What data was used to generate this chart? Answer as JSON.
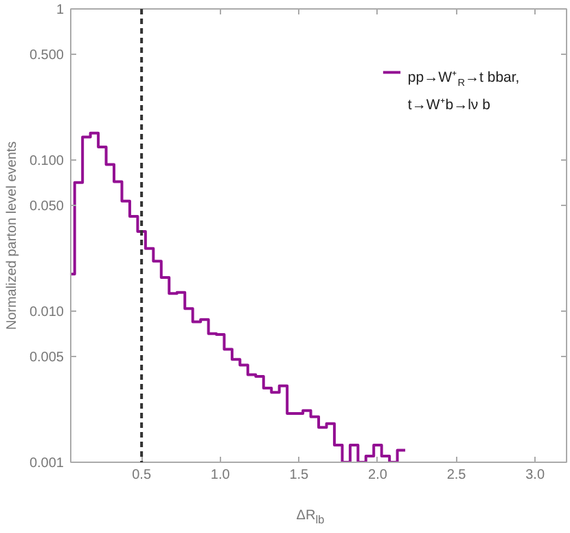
{
  "chart_data": {
    "type": "histogram",
    "xlabel": "ΔR$_{lb}$",
    "ylabel": "Normalized parton level events",
    "bins": [
      0.05,
      0.075,
      0.125,
      0.175,
      0.225,
      0.275,
      0.325,
      0.375,
      0.425,
      0.475,
      0.525,
      0.575,
      0.625,
      0.675,
      0.725,
      0.775,
      0.825,
      0.875,
      0.925,
      0.975,
      1.025,
      1.075,
      1.125,
      1.175,
      1.225,
      1.275,
      1.325,
      1.375,
      1.425,
      1.475,
      1.525,
      1.575,
      1.625,
      1.675,
      1.725,
      1.775,
      1.825,
      1.875,
      1.925,
      1.975,
      2.025,
      2.075,
      2.125,
      2.175
    ],
    "series": [
      {
        "name": "pp→W⁺$_{R}$→t bbar,\nt→W⁺b→lν b",
        "color": "#930f93",
        "values": [
          0.0176,
          0.071,
          0.142,
          0.151,
          0.122,
          0.0935,
          0.072,
          0.0535,
          0.0424,
          0.0337,
          0.026,
          0.0214,
          0.0167,
          0.0131,
          0.0133,
          0.0104,
          0.0085,
          0.0088,
          0.0071,
          0.007,
          0.0056,
          0.0048,
          0.0044,
          0.0038,
          0.0037,
          0.0031,
          0.0029,
          0.0032,
          0.0021,
          0.0021,
          0.0022,
          0.002,
          0.0017,
          0.0018,
          0.0013,
          null,
          0.0013,
          null,
          0.0011,
          0.0013,
          0.0011,
          null,
          0.0012
        ]
      }
    ],
    "xlim": [
      0.05,
      3.2
    ],
    "ylim": [
      0.001,
      1
    ],
    "xticks": [
      {
        "value": 0.5,
        "label": "0.5"
      },
      {
        "value": 1.0,
        "label": "1.0"
      },
      {
        "value": 1.5,
        "label": "1.5"
      },
      {
        "value": 2.0,
        "label": "2.0"
      },
      {
        "value": 2.5,
        "label": "2.5"
      },
      {
        "value": 3.0,
        "label": "3.0"
      }
    ],
    "yticks": [
      {
        "value": 0.001,
        "label": "0.001"
      },
      {
        "value": 0.005,
        "label": "0.005"
      },
      {
        "value": 0.01,
        "label": "0.010"
      },
      {
        "value": 0.05,
        "label": "0.050"
      },
      {
        "value": 0.1,
        "label": "0.100"
      },
      {
        "value": 0.5,
        "label": "0.500"
      },
      1
    ],
    "log": "y",
    "ref_lines": [
      {
        "axis": "x",
        "value": 0.5,
        "color": "#333333",
        "line_style": "dashed"
      }
    ],
    "legend": "top right",
    "grid": false
  }
}
